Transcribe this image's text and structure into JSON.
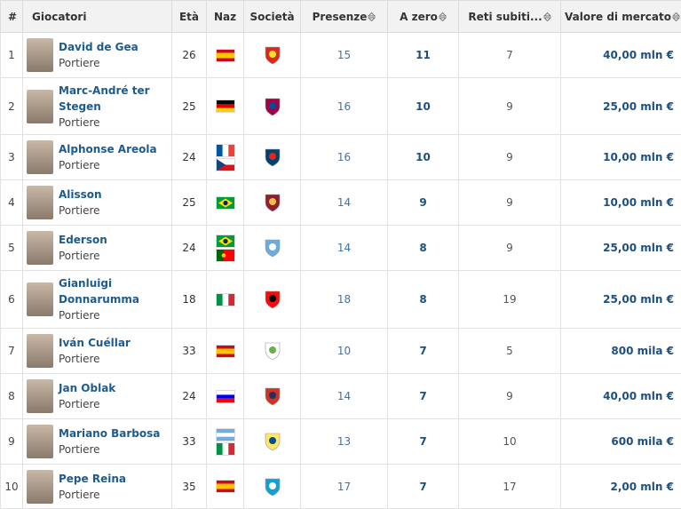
{
  "table": {
    "headers": [
      "#",
      "Giocatori",
      "Età",
      "Naz",
      "Società",
      "Presenze",
      "A zero",
      "Reti subiti...",
      "Valore di mercato"
    ],
    "rows": [
      {
        "rank": "1",
        "name": "David de Gea",
        "role": "Portiere",
        "age": "26",
        "apps": "15",
        "clean": "11",
        "conceded": "7",
        "value": "40,00 mln €"
      },
      {
        "rank": "2",
        "name": "Marc-André ter Stegen",
        "role": "Portiere",
        "age": "25",
        "apps": "16",
        "clean": "10",
        "conceded": "9",
        "value": "25,00 mln €"
      },
      {
        "rank": "3",
        "name": "Alphonse Areola",
        "role": "Portiere",
        "age": "24",
        "apps": "16",
        "clean": "10",
        "conceded": "9",
        "value": "10,00 mln €"
      },
      {
        "rank": "4",
        "name": "Alisson",
        "role": "Portiere",
        "age": "25",
        "apps": "14",
        "clean": "9",
        "conceded": "9",
        "value": "10,00 mln €"
      },
      {
        "rank": "5",
        "name": "Ederson",
        "role": "Portiere",
        "age": "24",
        "apps": "14",
        "clean": "8",
        "conceded": "9",
        "value": "25,00 mln €"
      },
      {
        "rank": "6",
        "name": "Gianluigi Donnarumma",
        "role": "Portiere",
        "age": "18",
        "apps": "18",
        "clean": "8",
        "conceded": "19",
        "value": "25,00 mln €"
      },
      {
        "rank": "7",
        "name": "Iván Cuéllar",
        "role": "Portiere",
        "age": "33",
        "apps": "10",
        "clean": "7",
        "conceded": "5",
        "value": "800 mila €"
      },
      {
        "rank": "8",
        "name": "Jan Oblak",
        "role": "Portiere",
        "age": "24",
        "apps": "14",
        "clean": "7",
        "conceded": "9",
        "value": "40,00 mln €"
      },
      {
        "rank": "9",
        "name": "Mariano Barbosa",
        "role": "Portiere",
        "age": "33",
        "apps": "13",
        "clean": "7",
        "conceded": "10",
        "value": "600 mila €"
      },
      {
        "rank": "10",
        "name": "Pepe Reina",
        "role": "Portiere",
        "age": "35",
        "apps": "17",
        "clean": "7",
        "conceded": "17",
        "value": "2,00 mln €"
      }
    ]
  }
}
